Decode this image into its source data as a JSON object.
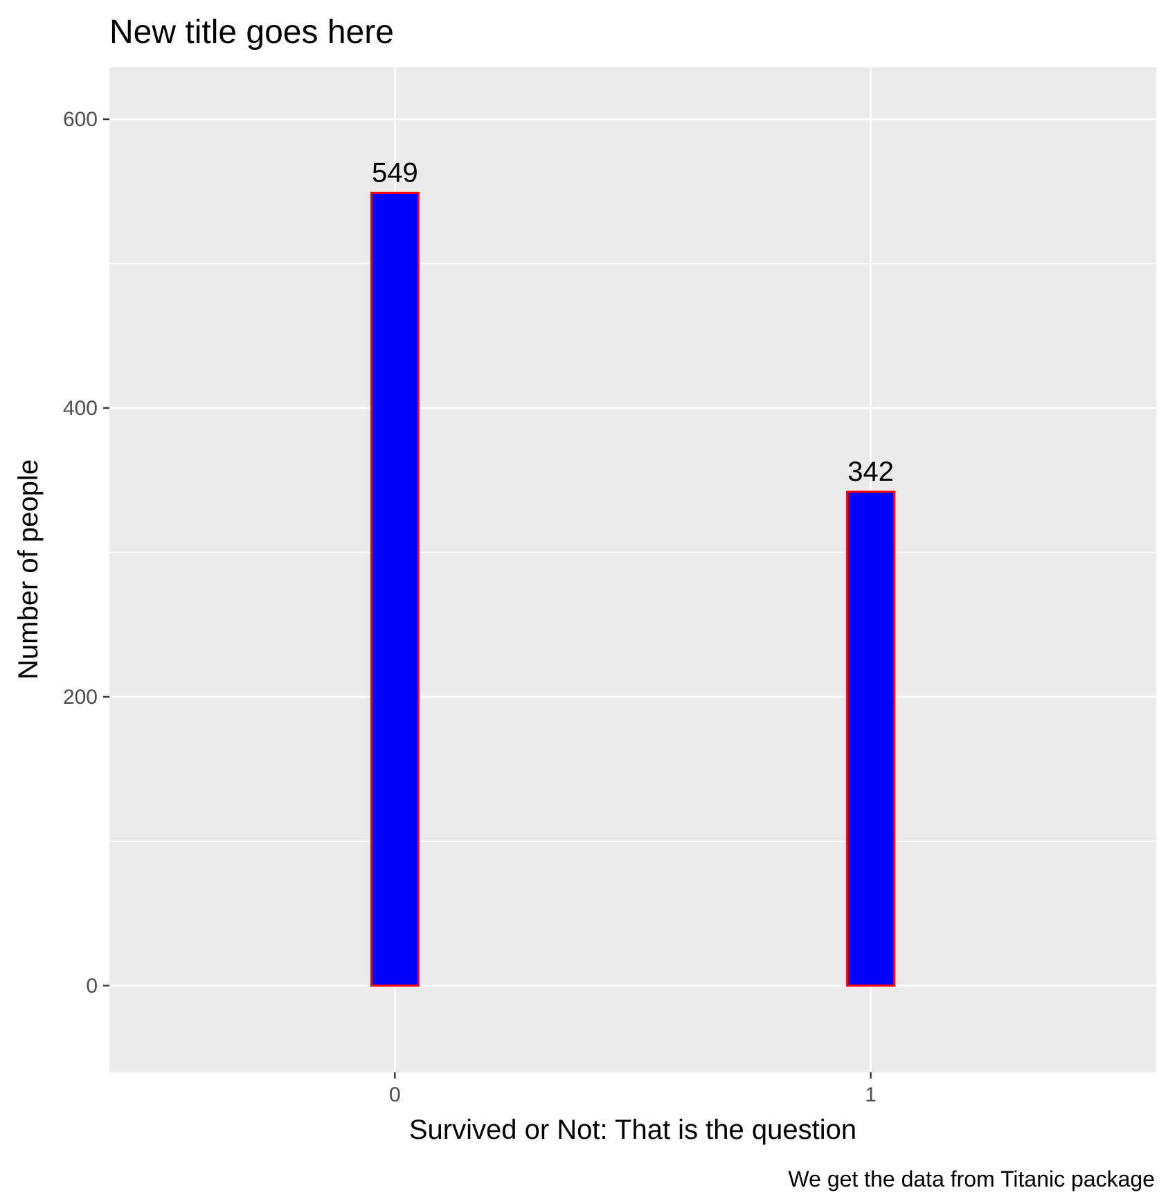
{
  "chart_data": {
    "type": "bar",
    "title": "New title goes here",
    "xlabel": "Survived or Not: That is the question",
    "ylabel": "Number of people",
    "caption": "We get the data from Titanic package",
    "categories": [
      "0",
      "1"
    ],
    "values": [
      549,
      342
    ],
    "data_labels": [
      "549",
      "342"
    ],
    "yticks": [
      0,
      200,
      400,
      600
    ],
    "ytick_labels": [
      "0",
      "200",
      "400",
      "600"
    ],
    "ylim": [
      -60,
      636
    ],
    "grid": true,
    "legend": "none",
    "colors": {
      "bar_fill": "#0000ff",
      "bar_outline": "#ff0000",
      "panel_background": "#ebebeb",
      "grid": "#ffffff"
    }
  }
}
